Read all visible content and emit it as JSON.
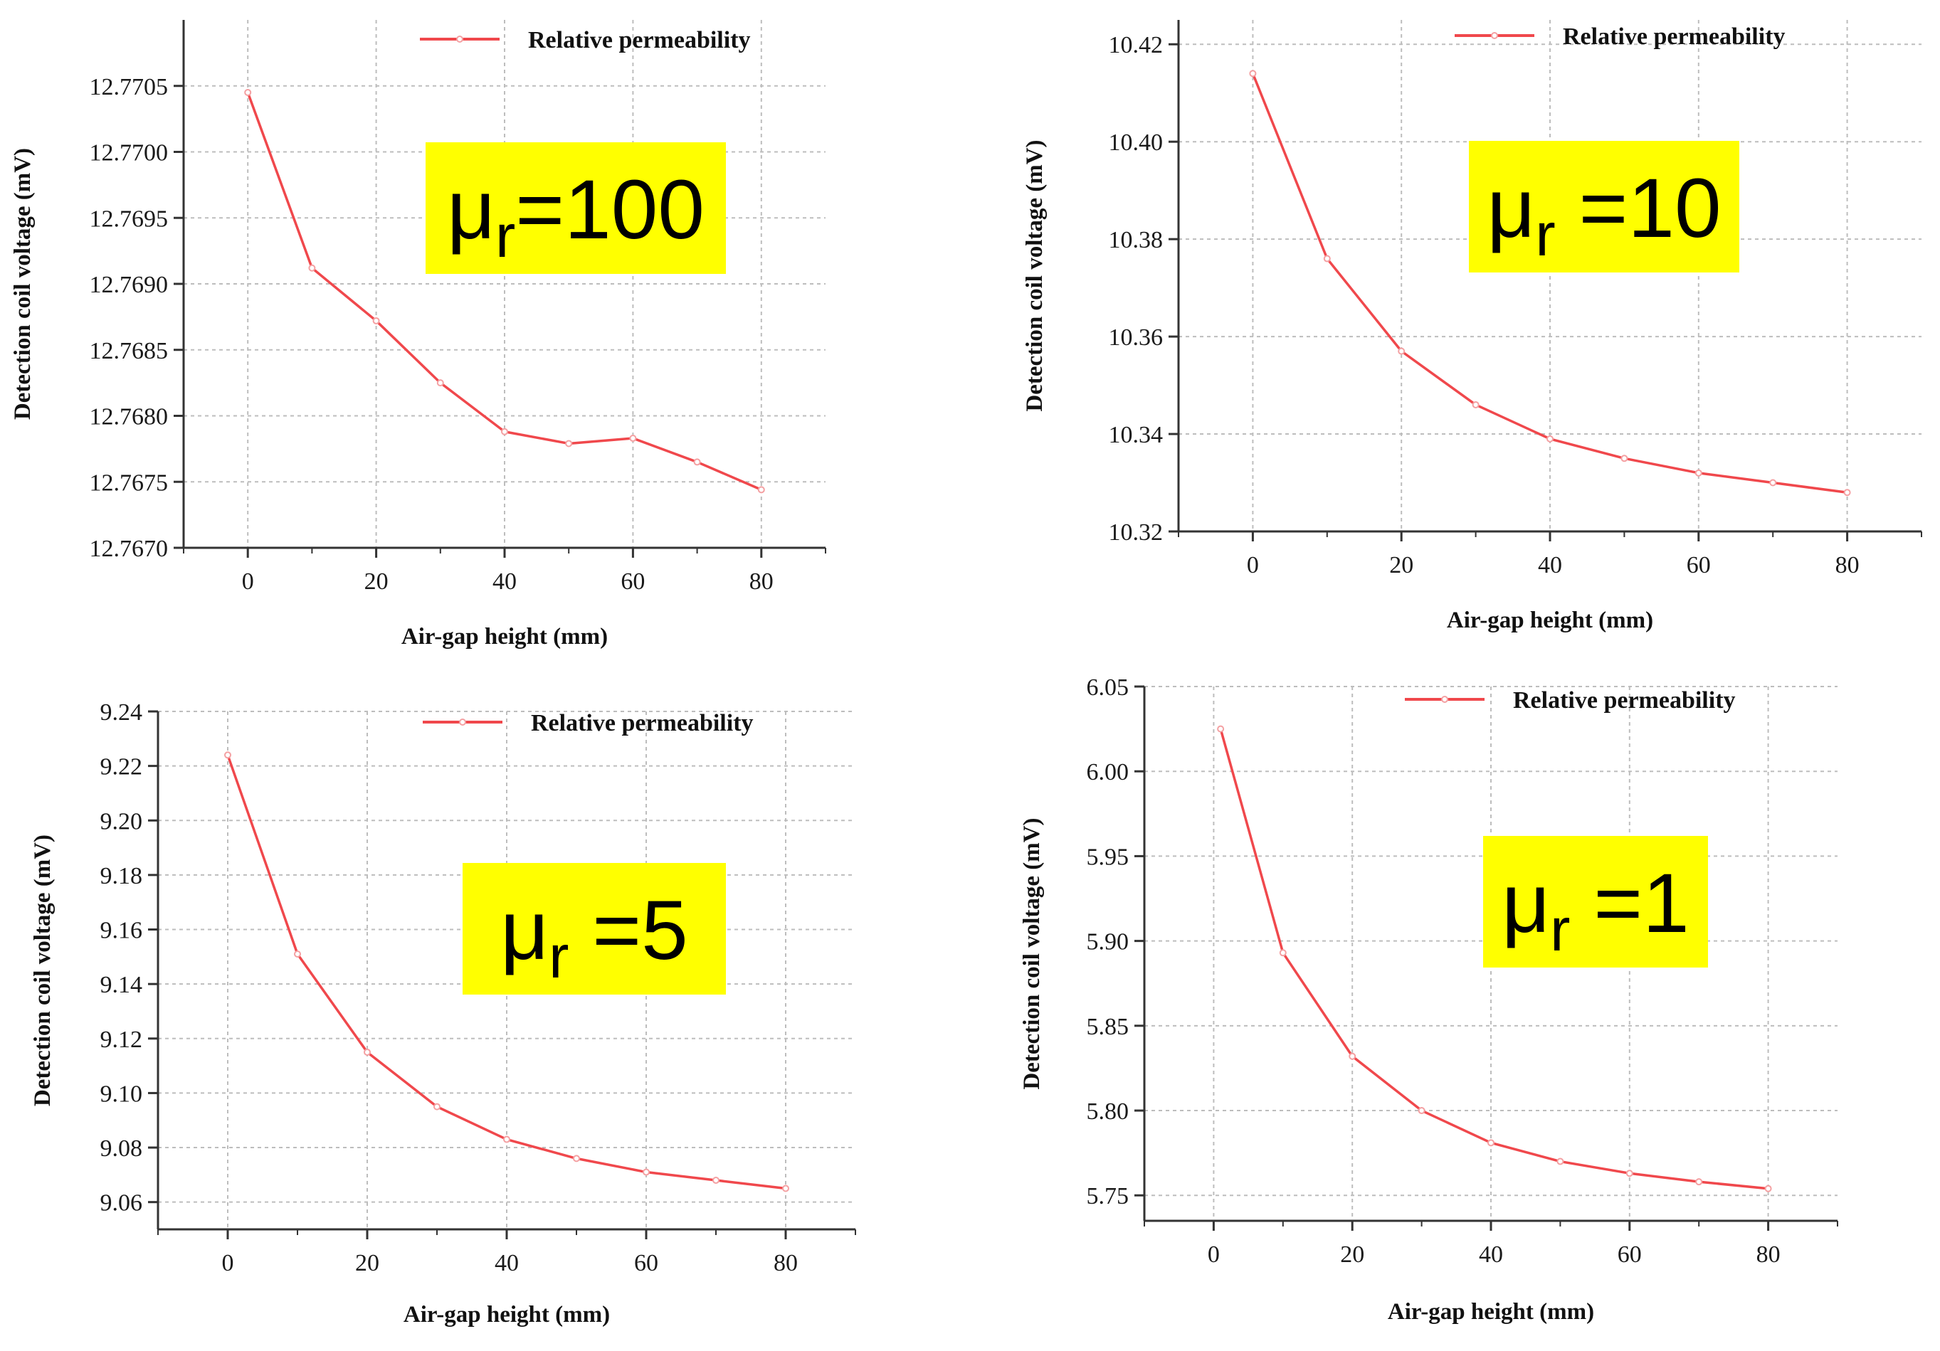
{
  "chart_data": [
    {
      "id": "mu100",
      "type": "line",
      "badge": {
        "symbol": "μ",
        "subscript": "r",
        "value": "=100"
      },
      "legend": "Relative permeability",
      "xlabel": "Air-gap height (mm)",
      "ylabel": "Detection coil voltage (mV)",
      "xlim": [
        -10,
        90
      ],
      "ylim": [
        12.767,
        12.771
      ],
      "xticks": [
        0,
        20,
        40,
        60,
        80
      ],
      "yticks": [
        12.767,
        12.7675,
        12.768,
        12.7685,
        12.769,
        12.7695,
        12.77,
        12.7705
      ],
      "ytick_labels": [
        "12.7670",
        "12.7675",
        "12.7680",
        "12.7685",
        "12.7690",
        "12.7695",
        "12.7700",
        "12.7705"
      ],
      "x": [
        0,
        10,
        20,
        30,
        40,
        50,
        60,
        70,
        80
      ],
      "values": [
        12.77045,
        12.76912,
        12.76872,
        12.76825,
        12.76788,
        12.76779,
        12.76783,
        12.76765,
        12.76744
      ],
      "color": "#f0484c"
    },
    {
      "id": "mu10",
      "type": "line",
      "badge": {
        "symbol": "μ",
        "subscript": "r",
        "value": " =10"
      },
      "legend": "Relative permeability",
      "xlabel": "Air-gap height (mm)",
      "ylabel": "Detection coil voltage (mV)",
      "xlim": [
        -10,
        90
      ],
      "ylim": [
        10.32,
        10.425
      ],
      "xticks": [
        0,
        20,
        40,
        60,
        80
      ],
      "yticks": [
        10.32,
        10.34,
        10.36,
        10.38,
        10.4,
        10.42
      ],
      "ytick_labels": [
        "10.32",
        "10.34",
        "10.36",
        "10.38",
        "10.40",
        "10.42"
      ],
      "x": [
        0,
        10,
        20,
        30,
        40,
        50,
        60,
        70,
        80
      ],
      "values": [
        10.414,
        10.376,
        10.357,
        10.346,
        10.339,
        10.335,
        10.332,
        10.33,
        10.328
      ],
      "color": "#f0484c"
    },
    {
      "id": "mu5",
      "type": "line",
      "badge": {
        "symbol": "μ",
        "subscript": "r",
        "value": " =5"
      },
      "legend": "Relative permeability",
      "xlabel": "Air-gap height (mm)",
      "ylabel": "Detection coil voltage (mV)",
      "xlim": [
        -10,
        90
      ],
      "ylim": [
        9.05,
        9.24
      ],
      "xticks": [
        0,
        20,
        40,
        60,
        80
      ],
      "yticks": [
        9.06,
        9.08,
        9.1,
        9.12,
        9.14,
        9.16,
        9.18,
        9.2,
        9.22,
        9.24
      ],
      "ytick_labels": [
        "9.06",
        "9.08",
        "9.10",
        "9.12",
        "9.14",
        "9.16",
        "9.18",
        "9.20",
        "9.22",
        "9.24"
      ],
      "x": [
        0,
        10,
        20,
        30,
        40,
        50,
        60,
        70,
        80
      ],
      "values": [
        9.224,
        9.151,
        9.115,
        9.095,
        9.083,
        9.076,
        9.071,
        9.068,
        9.065
      ],
      "color": "#f0484c"
    },
    {
      "id": "mu1",
      "type": "line",
      "badge": {
        "symbol": "μ",
        "subscript": "r",
        "value": " =1"
      },
      "legend": "Relative permeability",
      "xlabel": "Air-gap height (mm)",
      "ylabel": "Detection coil voltage (mV)",
      "xlim": [
        -10,
        90
      ],
      "ylim": [
        5.735,
        6.05
      ],
      "xticks": [
        0,
        20,
        40,
        60,
        80
      ],
      "yticks": [
        5.75,
        5.8,
        5.85,
        5.9,
        5.95,
        6.0,
        6.05
      ],
      "ytick_labels": [
        "5.75",
        "5.80",
        "5.85",
        "5.90",
        "5.95",
        "6.00",
        "6.05"
      ],
      "x": [
        1,
        10,
        20,
        30,
        40,
        50,
        60,
        70,
        80
      ],
      "values": [
        6.025,
        5.893,
        5.832,
        5.8,
        5.781,
        5.77,
        5.763,
        5.758,
        5.754
      ],
      "color": "#f0484c"
    }
  ],
  "style": {
    "badge_color": "#ffff00",
    "axis_color": "#333333",
    "grid_color": "#bdbdbd",
    "marker_color": "#f4a0a2"
  }
}
